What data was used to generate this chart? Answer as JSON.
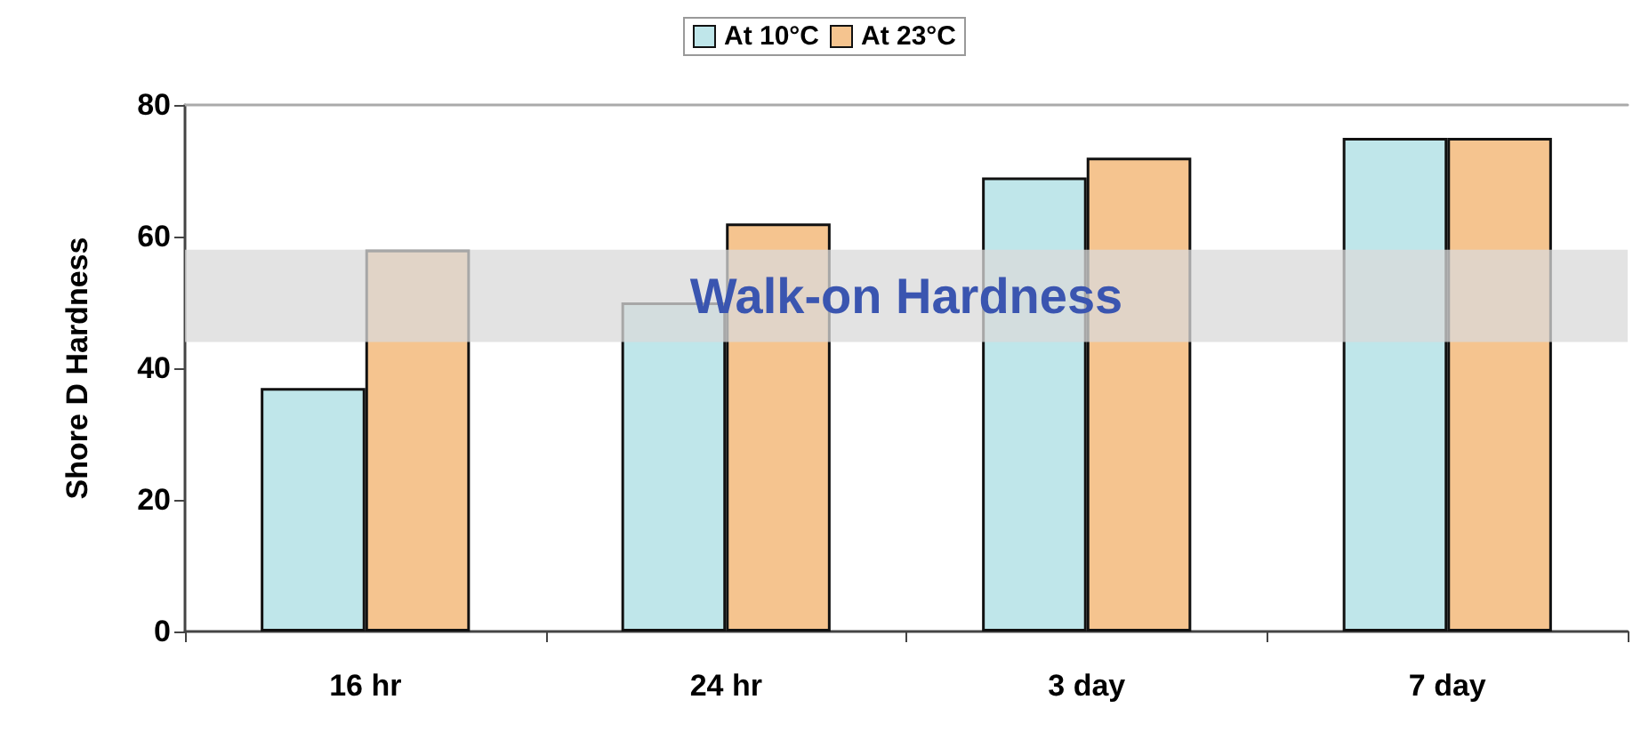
{
  "chart_data": {
    "type": "bar",
    "ylabel": "Shore D Hardness",
    "categories": [
      "16 hr",
      "24 hr",
      "3 day",
      "7 day"
    ],
    "series": [
      {
        "name": "At 10°C",
        "color": "#bfe6ea",
        "values": [
          37,
          50,
          69,
          75
        ]
      },
      {
        "name": "At 23°C",
        "color": "#f5c48f",
        "values": [
          58,
          62,
          72,
          75
        ]
      }
    ],
    "ylim": [
      0,
      80
    ],
    "yticks": [
      0,
      20,
      40,
      60,
      80
    ],
    "grid": false,
    "legend": "top",
    "bands": [
      {
        "axis": "y",
        "from": 44,
        "to": 58,
        "label": "Walk-on Hardness",
        "color": "#d9d9d9"
      }
    ]
  }
}
